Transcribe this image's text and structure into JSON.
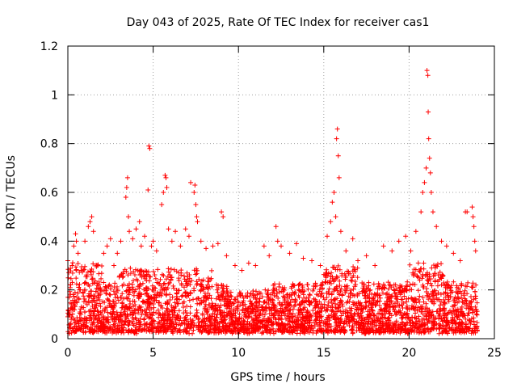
{
  "chart_data": {
    "type": "scatter",
    "title": "Day 043 of 2025, Rate Of TEC Index for receiver cas1",
    "xlabel": "GPS time / hours",
    "ylabel": "ROTI / TECUs",
    "xlim": [
      0,
      25
    ],
    "ylim": [
      0,
      1.2
    ],
    "x_ticks": [
      "0",
      "5",
      "10",
      "15",
      "20",
      "25"
    ],
    "y_ticks": [
      "0",
      "0.2",
      "0.4",
      "0.6",
      "0.8",
      "1",
      "1.2"
    ],
    "grid": true,
    "marker": "plus",
    "color": "#ff0000",
    "series": [
      {
        "values": [
          [
            0.0,
            0.32
          ],
          [
            0.25,
            0.3
          ],
          [
            0.35,
            0.38
          ],
          [
            0.45,
            0.43
          ],
          [
            0.5,
            0.4
          ],
          [
            0.6,
            0.35
          ],
          [
            1.0,
            0.4
          ],
          [
            1.2,
            0.46
          ],
          [
            1.3,
            0.48
          ],
          [
            1.4,
            0.5
          ],
          [
            1.5,
            0.44
          ],
          [
            1.7,
            0.3
          ],
          [
            2.1,
            0.35
          ],
          [
            2.3,
            0.38
          ],
          [
            2.5,
            0.41
          ],
          [
            2.7,
            0.3
          ],
          [
            2.9,
            0.35
          ],
          [
            3.1,
            0.4
          ],
          [
            3.4,
            0.58
          ],
          [
            3.45,
            0.62
          ],
          [
            3.5,
            0.66
          ],
          [
            3.55,
            0.5
          ],
          [
            3.6,
            0.44
          ],
          [
            3.8,
            0.41
          ],
          [
            4.0,
            0.45
          ],
          [
            4.2,
            0.48
          ],
          [
            4.3,
            0.38
          ],
          [
            4.5,
            0.42
          ],
          [
            4.7,
            0.61
          ],
          [
            4.75,
            0.79
          ],
          [
            4.8,
            0.78
          ],
          [
            4.9,
            0.38
          ],
          [
            5.0,
            0.4
          ],
          [
            5.2,
            0.36
          ],
          [
            5.5,
            0.55
          ],
          [
            5.6,
            0.6
          ],
          [
            5.7,
            0.67
          ],
          [
            5.75,
            0.66
          ],
          [
            5.8,
            0.62
          ],
          [
            5.9,
            0.45
          ],
          [
            6.1,
            0.4
          ],
          [
            6.3,
            0.44
          ],
          [
            6.6,
            0.38
          ],
          [
            6.9,
            0.45
          ],
          [
            7.1,
            0.42
          ],
          [
            7.2,
            0.64
          ],
          [
            7.4,
            0.6
          ],
          [
            7.45,
            0.63
          ],
          [
            7.5,
            0.55
          ],
          [
            7.55,
            0.5
          ],
          [
            7.6,
            0.48
          ],
          [
            7.8,
            0.4
          ],
          [
            8.1,
            0.37
          ],
          [
            8.5,
            0.38
          ],
          [
            8.8,
            0.39
          ],
          [
            9.0,
            0.52
          ],
          [
            9.1,
            0.5
          ],
          [
            9.3,
            0.34
          ],
          [
            9.8,
            0.3
          ],
          [
            10.2,
            0.28
          ],
          [
            10.6,
            0.31
          ],
          [
            11.0,
            0.3
          ],
          [
            11.5,
            0.38
          ],
          [
            11.8,
            0.34
          ],
          [
            12.2,
            0.46
          ],
          [
            12.3,
            0.4
          ],
          [
            12.5,
            0.38
          ],
          [
            13.0,
            0.35
          ],
          [
            13.4,
            0.39
          ],
          [
            13.8,
            0.33
          ],
          [
            14.3,
            0.32
          ],
          [
            14.8,
            0.3
          ],
          [
            15.2,
            0.42
          ],
          [
            15.4,
            0.48
          ],
          [
            15.5,
            0.56
          ],
          [
            15.6,
            0.6
          ],
          [
            15.7,
            0.5
          ],
          [
            15.75,
            0.82
          ],
          [
            15.8,
            0.86
          ],
          [
            15.85,
            0.75
          ],
          [
            15.9,
            0.66
          ],
          [
            16.0,
            0.44
          ],
          [
            16.3,
            0.36
          ],
          [
            16.7,
            0.41
          ],
          [
            17.0,
            0.32
          ],
          [
            17.5,
            0.34
          ],
          [
            18.0,
            0.3
          ],
          [
            18.5,
            0.38
          ],
          [
            19.0,
            0.36
          ],
          [
            19.4,
            0.4
          ],
          [
            19.8,
            0.42
          ],
          [
            20.1,
            0.36
          ],
          [
            20.4,
            0.44
          ],
          [
            20.7,
            0.52
          ],
          [
            20.8,
            0.6
          ],
          [
            20.9,
            0.64
          ],
          [
            21.0,
            0.7
          ],
          [
            21.05,
            1.1
          ],
          [
            21.1,
            1.08
          ],
          [
            21.12,
            0.93
          ],
          [
            21.15,
            0.82
          ],
          [
            21.2,
            0.74
          ],
          [
            21.25,
            0.68
          ],
          [
            21.3,
            0.6
          ],
          [
            21.4,
            0.52
          ],
          [
            21.6,
            0.46
          ],
          [
            21.9,
            0.4
          ],
          [
            22.2,
            0.38
          ],
          [
            22.6,
            0.35
          ],
          [
            23.0,
            0.32
          ],
          [
            23.3,
            0.52
          ],
          [
            23.4,
            0.52
          ],
          [
            23.7,
            0.54
          ],
          [
            23.75,
            0.5
          ],
          [
            23.8,
            0.46
          ],
          [
            23.85,
            0.4
          ],
          [
            23.9,
            0.36
          ]
        ]
      }
    ]
  }
}
